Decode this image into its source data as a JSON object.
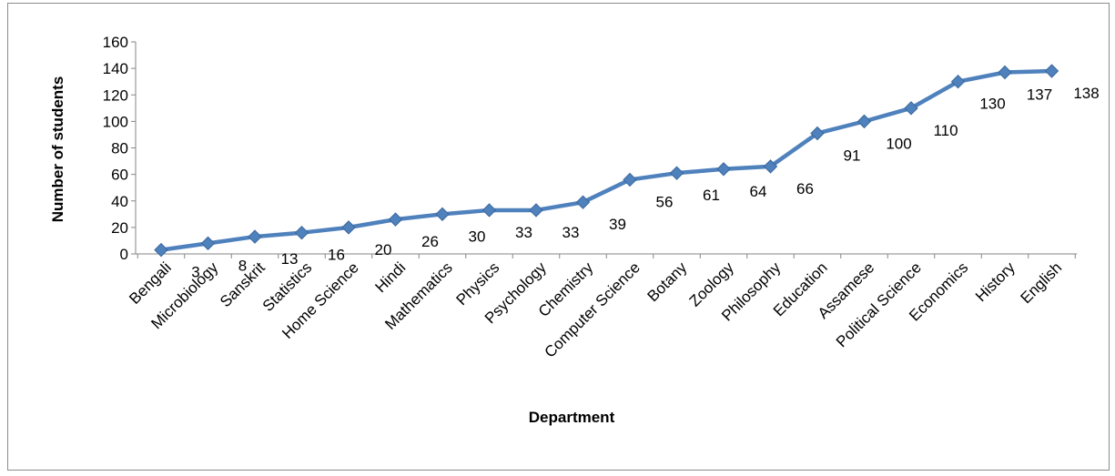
{
  "chart_data": {
    "type": "line",
    "title": "",
    "xlabel": "Department",
    "ylabel": "Number of students",
    "categories": [
      "Bengali",
      "Microbiology",
      "Sanskrit",
      "Statistics",
      "Home Science",
      "Hindi",
      "Mathematics",
      "Physics",
      "Psychology",
      "Chemistry",
      "Computer Science",
      "Botany",
      "Zoology",
      "Philosophy",
      "Education",
      "Assamese",
      "Political Science",
      "Economics",
      "History",
      "English"
    ],
    "series": [
      {
        "values": [
          3,
          8,
          13,
          16,
          20,
          26,
          30,
          33,
          33,
          39,
          56,
          61,
          64,
          66,
          91,
          100,
          110,
          130,
          137,
          138
        ],
        "color": "#4f81bd",
        "marker": "diamond"
      }
    ],
    "data_labels": [
      "3",
      "8",
      "13",
      "16",
      "20",
      "26",
      "30",
      "33",
      "33",
      "39",
      "56",
      "61",
      "64",
      "66",
      "91",
      "100",
      "110",
      "130",
      "137",
      "138"
    ],
    "ylim": [
      0,
      160
    ],
    "yticks": [
      0,
      20,
      40,
      60,
      80,
      100,
      120,
      140,
      160
    ],
    "grid": false,
    "legend": "none"
  }
}
